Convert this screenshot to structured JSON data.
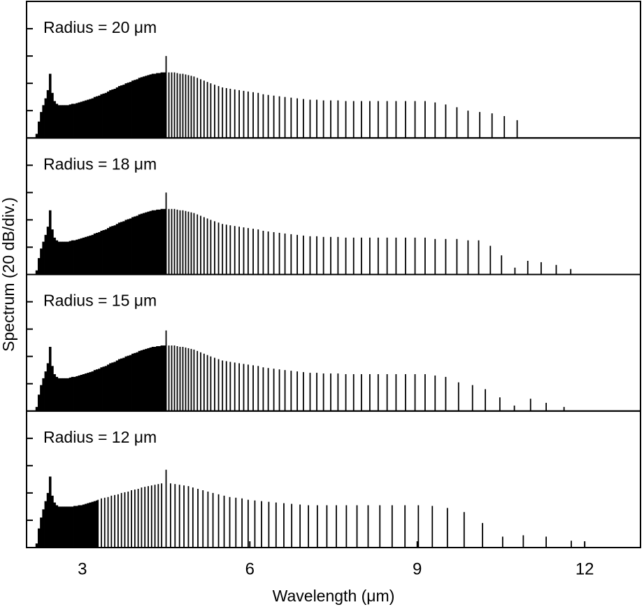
{
  "chart_data": [
    {
      "type": "stem",
      "annotation": "Radius = 20 μm",
      "ylabel": "Spectrum (20 dB/div.)",
      "color": "#000000",
      "xlim": [
        2,
        13
      ],
      "ylim": [
        0,
        100
      ],
      "yticks": [
        20,
        40,
        60,
        80
      ],
      "x": [
        2.16,
        2.2,
        2.24,
        2.28,
        2.32,
        2.36,
        2.4,
        2.44,
        2.48,
        2.52,
        2.56,
        2.6,
        2.64,
        2.68,
        2.72,
        2.76,
        2.8,
        2.84,
        2.88,
        2.92,
        2.96,
        3.0,
        3.04,
        3.08,
        3.12,
        3.16,
        3.2,
        3.24,
        3.28,
        3.32,
        3.36,
        3.4,
        3.44,
        3.48,
        3.52,
        3.56,
        3.6,
        3.64,
        3.68,
        3.72,
        3.76,
        3.8,
        3.84,
        3.88,
        3.92,
        3.96,
        4.0,
        4.04,
        4.08,
        4.12,
        4.16,
        4.2,
        4.24,
        4.28,
        4.32,
        4.36,
        4.4,
        4.44,
        4.48,
        4.5,
        4.55,
        4.6,
        4.65,
        4.7,
        4.75,
        4.8,
        4.85,
        4.9,
        4.95,
        5.0,
        5.06,
        5.12,
        5.18,
        5.24,
        5.3,
        5.37,
        5.44,
        5.51,
        5.58,
        5.65,
        5.73,
        5.81,
        5.89,
        5.97,
        6.06,
        6.15,
        6.24,
        6.33,
        6.43,
        6.53,
        6.63,
        6.74,
        6.85,
        6.96,
        7.08,
        7.2,
        7.32,
        7.45,
        7.58,
        7.72,
        7.86,
        8.0,
        8.15,
        8.3,
        8.46,
        8.62,
        8.79,
        8.96,
        9.14,
        9.32,
        9.51,
        9.71,
        9.91,
        10.12,
        10.34,
        10.56,
        10.79
      ],
      "values": [
        3,
        12,
        19,
        24,
        29,
        35,
        47,
        33,
        27,
        25,
        24,
        24,
        24,
        24,
        24,
        24.5,
        25,
        25,
        25.5,
        26,
        26.5,
        27,
        27.5,
        28,
        28.5,
        29,
        30,
        30.5,
        31,
        32,
        32.5,
        33,
        34,
        35,
        35.5,
        36,
        37,
        38,
        38.5,
        39,
        40,
        40.5,
        41,
        42,
        42.5,
        43,
        44,
        44.5,
        45,
        45.5,
        46,
        46.5,
        47,
        47,
        47.5,
        47.5,
        48,
        48,
        48,
        60,
        48,
        48,
        48,
        47.5,
        47,
        47,
        46.5,
        46,
        45.5,
        45,
        44,
        43,
        42,
        41,
        40,
        39,
        38,
        37,
        36.5,
        36,
        35.5,
        35,
        34.5,
        34,
        33.5,
        33,
        32,
        31.5,
        31,
        30.5,
        30,
        29.5,
        29,
        28.5,
        28,
        28,
        27.5,
        27.5,
        27.5,
        27,
        27,
        27,
        27,
        27,
        27,
        27,
        27,
        27,
        27,
        26,
        24.5,
        22.5,
        20,
        19,
        18,
        16,
        13
      ]
    },
    {
      "type": "stem",
      "annotation": "Radius = 18 μm",
      "color": "#000000",
      "xlim": [
        2,
        13
      ],
      "ylim": [
        0,
        100
      ],
      "yticks": [
        20,
        40,
        60,
        80
      ],
      "x": [
        2.16,
        2.2,
        2.24,
        2.28,
        2.32,
        2.36,
        2.4,
        2.44,
        2.48,
        2.52,
        2.56,
        2.6,
        2.64,
        2.68,
        2.72,
        2.76,
        2.8,
        2.84,
        2.88,
        2.92,
        2.96,
        3.0,
        3.04,
        3.08,
        3.12,
        3.16,
        3.2,
        3.24,
        3.28,
        3.32,
        3.36,
        3.4,
        3.44,
        3.48,
        3.52,
        3.56,
        3.6,
        3.64,
        3.68,
        3.72,
        3.76,
        3.8,
        3.84,
        3.88,
        3.92,
        3.96,
        4.0,
        4.04,
        4.08,
        4.12,
        4.16,
        4.2,
        4.24,
        4.28,
        4.32,
        4.36,
        4.4,
        4.44,
        4.48,
        4.5,
        4.55,
        4.6,
        4.65,
        4.7,
        4.75,
        4.8,
        4.85,
        4.9,
        4.95,
        5.0,
        5.06,
        5.12,
        5.18,
        5.24,
        5.3,
        5.37,
        5.44,
        5.51,
        5.58,
        5.65,
        5.73,
        5.81,
        5.89,
        5.97,
        6.06,
        6.15,
        6.24,
        6.33,
        6.43,
        6.53,
        6.63,
        6.74,
        6.85,
        6.96,
        7.08,
        7.2,
        7.32,
        7.45,
        7.58,
        7.72,
        7.86,
        8.0,
        8.15,
        8.3,
        8.46,
        8.62,
        8.79,
        8.96,
        9.14,
        9.32,
        9.51,
        9.71,
        9.91,
        10.1,
        10.31,
        10.51,
        10.75,
        10.98,
        11.22,
        11.49,
        11.75
      ],
      "values": [
        3,
        12,
        19,
        24,
        29,
        35,
        47,
        33,
        27,
        25,
        24,
        24,
        24,
        24,
        24,
        24.5,
        25,
        25,
        25.5,
        26,
        26.5,
        27,
        27.5,
        28,
        28.5,
        29,
        30,
        30.5,
        31,
        32,
        32.5,
        33,
        34,
        35,
        35.5,
        36,
        37,
        38,
        38.5,
        39,
        40,
        40.5,
        41,
        42,
        42.5,
        43,
        44,
        44.5,
        45,
        45.5,
        46,
        46.5,
        47,
        47,
        47.5,
        47.5,
        48,
        48,
        48,
        60,
        48,
        48,
        48,
        47.5,
        47,
        47,
        46.5,
        46,
        45.5,
        45,
        44,
        43,
        42,
        41,
        40,
        39,
        38,
        37,
        36.5,
        36,
        35.5,
        35,
        34.5,
        34,
        33.5,
        33,
        32,
        31.5,
        31,
        30.5,
        30,
        29.5,
        29,
        28.5,
        28,
        28,
        27.5,
        27.5,
        27.5,
        27,
        27,
        27,
        27,
        27,
        27,
        27,
        27,
        27,
        27,
        26,
        26,
        26,
        25,
        25,
        21,
        14,
        5,
        10,
        9,
        7,
        4
      ]
    },
    {
      "type": "stem",
      "annotation": "Radius = 15 μm",
      "color": "#000000",
      "xlim": [
        2,
        13
      ],
      "ylim": [
        0,
        100
      ],
      "yticks": [
        20,
        40,
        60,
        80
      ],
      "x": [
        2.16,
        2.2,
        2.24,
        2.28,
        2.32,
        2.36,
        2.4,
        2.44,
        2.48,
        2.52,
        2.56,
        2.6,
        2.64,
        2.68,
        2.72,
        2.76,
        2.8,
        2.84,
        2.88,
        2.92,
        2.96,
        3.0,
        3.04,
        3.08,
        3.12,
        3.16,
        3.2,
        3.24,
        3.28,
        3.32,
        3.36,
        3.4,
        3.44,
        3.48,
        3.52,
        3.56,
        3.6,
        3.64,
        3.68,
        3.72,
        3.76,
        3.8,
        3.84,
        3.88,
        3.92,
        3.96,
        4.0,
        4.04,
        4.08,
        4.12,
        4.16,
        4.2,
        4.24,
        4.28,
        4.32,
        4.36,
        4.4,
        4.44,
        4.48,
        4.5,
        4.55,
        4.6,
        4.65,
        4.7,
        4.75,
        4.8,
        4.85,
        4.9,
        4.95,
        5.0,
        5.06,
        5.12,
        5.18,
        5.24,
        5.3,
        5.37,
        5.44,
        5.51,
        5.58,
        5.65,
        5.73,
        5.81,
        5.89,
        5.97,
        6.06,
        6.15,
        6.24,
        6.33,
        6.43,
        6.53,
        6.63,
        6.74,
        6.85,
        6.96,
        7.08,
        7.2,
        7.32,
        7.45,
        7.58,
        7.72,
        7.86,
        8.0,
        8.15,
        8.3,
        8.46,
        8.62,
        8.79,
        8.96,
        9.14,
        9.32,
        9.51,
        9.74,
        9.99,
        10.22,
        10.48,
        10.74,
        11.03,
        11.31,
        11.63
      ],
      "values": [
        3,
        12,
        19,
        24,
        29,
        35,
        47,
        33,
        27,
        25,
        24,
        24,
        24,
        24,
        24,
        24.5,
        25,
        25,
        25.5,
        26,
        26.5,
        27,
        27.5,
        28,
        28.5,
        29,
        30,
        30.5,
        31,
        32,
        32.5,
        33,
        34,
        35,
        35.5,
        36,
        37,
        38,
        38.5,
        39,
        40,
        40.5,
        41,
        42,
        42.5,
        43,
        44,
        44.5,
        45,
        45.5,
        46,
        46.5,
        47,
        47,
        47.5,
        47.5,
        48,
        48,
        48,
        59,
        48,
        48,
        48,
        47.5,
        47,
        47,
        46.5,
        46,
        45.5,
        45,
        44,
        43,
        42,
        41,
        40,
        39,
        38,
        37,
        36.5,
        36,
        35.5,
        35,
        34.5,
        34,
        33.5,
        33,
        32,
        31.5,
        31,
        30.5,
        30,
        29.5,
        29,
        28.5,
        28,
        28,
        27.5,
        27.5,
        27.5,
        27,
        27,
        27,
        27,
        27,
        27,
        27,
        27,
        27,
        27,
        26,
        25,
        21,
        19,
        16,
        10,
        4,
        9,
        6,
        3
      ]
    },
    {
      "type": "stem",
      "annotation": "Radius = 12 μm",
      "xlabel": "Wavelength (μm)",
      "color": "#000000",
      "xlim": [
        2,
        13
      ],
      "ylim": [
        0,
        100
      ],
      "yticks": [
        20,
        40,
        60,
        80
      ],
      "xticks": [
        3,
        6,
        9,
        12
      ],
      "x": [
        2.16,
        2.2,
        2.24,
        2.28,
        2.32,
        2.36,
        2.4,
        2.44,
        2.48,
        2.52,
        2.56,
        2.6,
        2.64,
        2.68,
        2.72,
        2.76,
        2.8,
        2.84,
        2.88,
        2.92,
        2.96,
        3.0,
        3.04,
        3.08,
        3.12,
        3.16,
        3.2,
        3.24,
        3.28,
        3.34,
        3.4,
        3.46,
        3.52,
        3.58,
        3.64,
        3.7,
        3.76,
        3.82,
        3.88,
        3.94,
        4.0,
        4.06,
        4.12,
        4.18,
        4.24,
        4.3,
        4.36,
        4.42,
        4.5,
        4.58,
        4.66,
        4.74,
        4.82,
        4.9,
        4.98,
        5.07,
        5.16,
        5.25,
        5.34,
        5.44,
        5.54,
        5.64,
        5.75,
        5.86,
        5.97,
        6.09,
        6.21,
        6.34,
        6.47,
        6.61,
        6.75,
        6.9,
        7.05,
        7.21,
        7.38,
        7.55,
        7.73,
        7.92,
        8.12,
        8.33,
        8.55,
        8.78,
        9.02,
        9.27,
        9.54,
        9.84,
        10.17,
        10.53,
        10.9,
        11.31,
        11.76
      ],
      "values": [
        3,
        14,
        22,
        28,
        34,
        40,
        52,
        38,
        33,
        31,
        30,
        30,
        30,
        30,
        30,
        30,
        30,
        30.5,
        30.5,
        31,
        31,
        31.5,
        32,
        32.5,
        33,
        33.5,
        34,
        34.5,
        35,
        36,
        36.5,
        37,
        38,
        38.5,
        39,
        40,
        40.5,
        41,
        42,
        42.5,
        43,
        44,
        44.5,
        45,
        45.5,
        46,
        46.5,
        47,
        57,
        47,
        46.5,
        46,
        45.5,
        45,
        44,
        43,
        42,
        41,
        40,
        39,
        38,
        37,
        36.5,
        36,
        35,
        34.5,
        34,
        33.5,
        33,
        32.5,
        32,
        31.5,
        31,
        31,
        31,
        31,
        31,
        31,
        31,
        31,
        31,
        31,
        31,
        30.5,
        29,
        26,
        18,
        8,
        9,
        8,
        5
      ]
    }
  ]
}
